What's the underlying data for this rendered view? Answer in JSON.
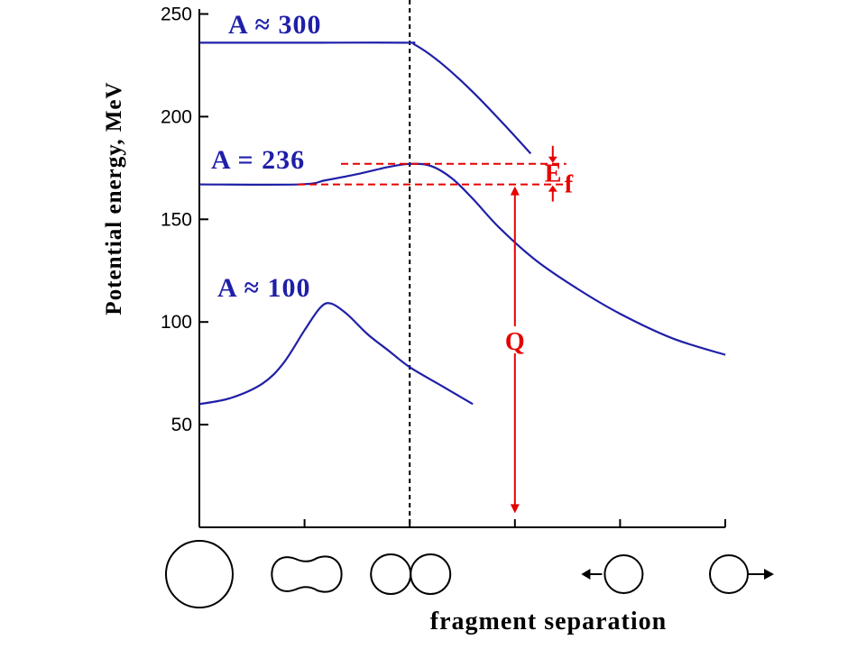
{
  "chart_data": {
    "type": "line",
    "title": "",
    "xlabel": "fragment separation",
    "ylabel": "Potential energy, MeV",
    "ylim": [
      0,
      250
    ],
    "xlim": [
      0,
      5
    ],
    "yticks": [
      50,
      100,
      150,
      200,
      250
    ],
    "xticks": [
      1,
      2,
      3,
      4,
      5
    ],
    "grid": false,
    "reference_line": {
      "x": 2,
      "style": "dashed",
      "color": "#000000"
    },
    "series": [
      {
        "name": "A ≈ 300",
        "color": "#1f1fa8",
        "x": [
          0,
          1,
          1.95,
          2.05,
          2.3,
          2.6,
          2.9,
          3.15
        ],
        "y": [
          236,
          236,
          236,
          235,
          226,
          212,
          196,
          182
        ]
      },
      {
        "name": "A = 236",
        "color": "#1f1fa8",
        "x": [
          0,
          0.95,
          1.2,
          1.5,
          1.8,
          2.0,
          2.2,
          2.4,
          2.6,
          2.85,
          3.2,
          3.6,
          4.0,
          4.5,
          5.0
        ],
        "y": [
          167,
          167,
          169,
          172,
          175.5,
          177,
          176,
          170,
          160,
          146,
          130,
          116,
          104,
          92,
          84
        ]
      },
      {
        "name": "A ≈ 100",
        "color": "#1f1fa8",
        "x": [
          0,
          0.3,
          0.6,
          0.8,
          1.0,
          1.15,
          1.25,
          1.4,
          1.6,
          1.8,
          2.0,
          2.3,
          2.6
        ],
        "y": [
          60,
          63,
          70,
          80,
          96,
          107,
          109,
          104,
          94,
          86,
          78,
          69,
          60
        ]
      }
    ],
    "annotations": {
      "ef_label": "E",
      "ef_subscript": "f",
      "q_label": "Q",
      "color": "#e60000",
      "barrier_top": 177,
      "ground_state": 167,
      "q_x": 3.0,
      "ef_x": 3.3,
      "q_bottom": 6
    },
    "shapes": [
      {
        "name": "sphere",
        "x": 0
      },
      {
        "name": "deformed-nucleus",
        "x": 1
      },
      {
        "name": "touching-spheres",
        "x": 2
      },
      {
        "name": "fragment-left",
        "x": 4
      },
      {
        "name": "fragment-right",
        "x": 5
      }
    ]
  }
}
